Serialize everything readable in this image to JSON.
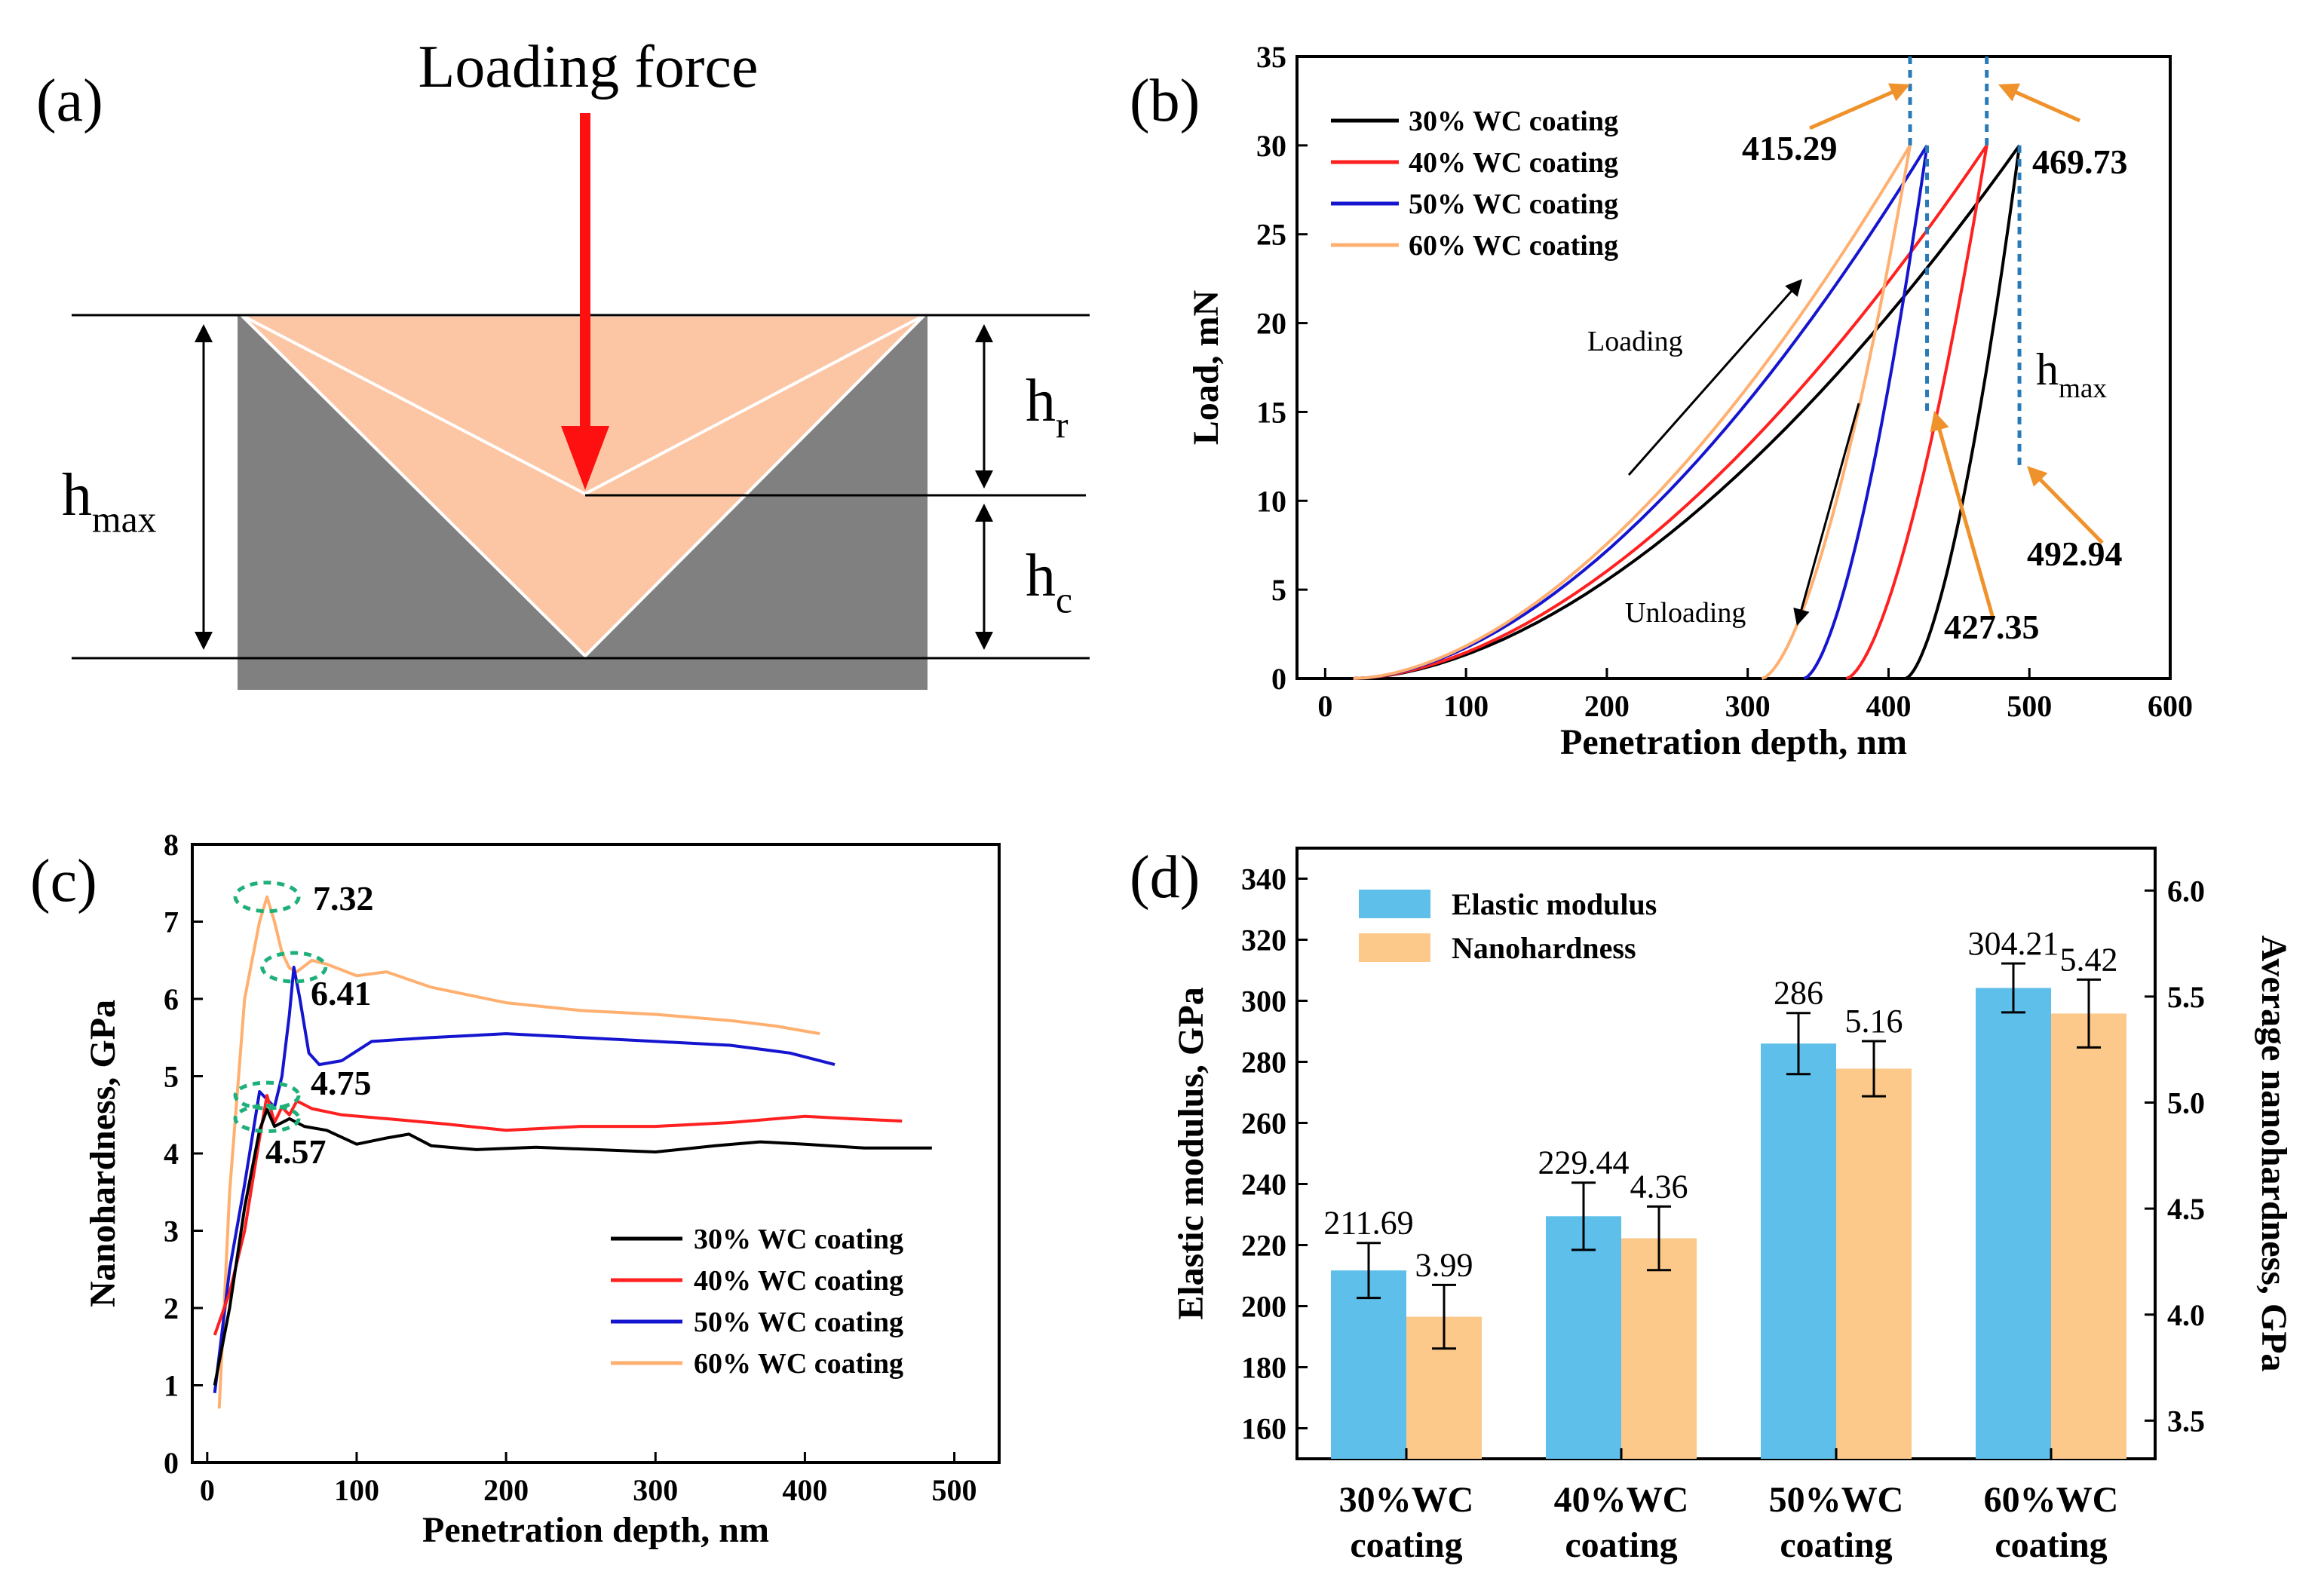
{
  "panels": {
    "a": {
      "label": "(a)",
      "force_label": "Loading force",
      "hmax": {
        "main": "h",
        "sub": "max"
      },
      "hr": {
        "main": "h",
        "sub": "r"
      },
      "hc": {
        "main": "h",
        "sub": "c"
      },
      "colors": {
        "substrate": "#808080",
        "indenter": "#fcc6a4",
        "arrow": "#ff1010"
      }
    },
    "b": {
      "label": "(b)",
      "hmax": {
        "main": "h",
        "sub": "max"
      },
      "loading_label": "Loading",
      "unloading_label": "Unloading",
      "callouts": [
        "415.29",
        "469.73",
        "427.35",
        "492.94"
      ]
    },
    "c": {
      "label": "(c)",
      "peaks": [
        "7.32",
        "6.41",
        "4.75",
        "4.57"
      ]
    },
    "d": {
      "label": "(d)",
      "legend": [
        "Elastic modulus",
        "Nanohardness"
      ],
      "category_lines": [
        [
          "30%WC",
          "coating"
        ],
        [
          "40%WC",
          "coating"
        ],
        [
          "50%WC",
          "coating"
        ],
        [
          "60%WC",
          "coating"
        ]
      ]
    }
  },
  "series_colors": [
    "#000000",
    "#ff2020",
    "#1515d0",
    "#ffb070"
  ],
  "bar_colors": [
    "#5ec0ea",
    "#fcc98a"
  ],
  "callout_color": "#f0922b",
  "chart_data": [
    {
      "panel": "b",
      "type": "line",
      "title": "",
      "xlabel": "Penetration depth, nm",
      "ylabel": "Load, mN",
      "xlim": [
        -20,
        600
      ],
      "ylim": [
        0,
        35
      ],
      "xticks": [
        0,
        100,
        200,
        300,
        400,
        500,
        600
      ],
      "yticks": [
        0,
        5,
        10,
        15,
        20,
        25,
        30,
        35
      ],
      "legend_position": "top-left",
      "series": [
        {
          "name": "30% WC coating",
          "hmax": 492.94,
          "hr": 412,
          "hpeak": 30
        },
        {
          "name": "40% WC coating",
          "hmax": 469.73,
          "hr": 370,
          "hpeak": 30
        },
        {
          "name": "50% WC coating",
          "hmax": 427.35,
          "hr": 340,
          "hpeak": 30
        },
        {
          "name": "60% WC coating",
          "hmax": 415.29,
          "hr": 310,
          "hpeak": 30
        }
      ],
      "annotations": [
        {
          "text": "415.29",
          "x": 415.29
        },
        {
          "text": "469.73",
          "x": 469.73
        },
        {
          "text": "427.35",
          "x": 427.35
        },
        {
          "text": "492.94",
          "x": 492.94
        }
      ]
    },
    {
      "panel": "c",
      "type": "line",
      "title": "",
      "xlabel": "Penetration depth, nm",
      "ylabel": "Nanohardness, GPa",
      "xlim": [
        -10,
        530
      ],
      "ylim": [
        0,
        8
      ],
      "xticks": [
        0,
        100,
        200,
        300,
        400,
        500
      ],
      "yticks": [
        0,
        1,
        2,
        3,
        4,
        5,
        6,
        7,
        8
      ],
      "legend_position": "bottom-right",
      "series": [
        {
          "name": "30% WC coating",
          "x": [
            5,
            15,
            25,
            35,
            40,
            45,
            55,
            65,
            80,
            100,
            120,
            135,
            150,
            180,
            220,
            260,
            300,
            340,
            370,
            400,
            440,
            485
          ],
          "y": [
            1.0,
            2.0,
            3.3,
            4.3,
            4.57,
            4.35,
            4.45,
            4.35,
            4.3,
            4.12,
            4.2,
            4.25,
            4.1,
            4.05,
            4.08,
            4.05,
            4.02,
            4.1,
            4.15,
            4.12,
            4.07,
            4.07
          ]
        },
        {
          "name": "40% WC coating",
          "x": [
            5,
            15,
            25,
            35,
            40,
            45,
            50,
            55,
            60,
            70,
            90,
            120,
            160,
            200,
            250,
            300,
            350,
            400,
            430,
            465
          ],
          "y": [
            1.65,
            2.2,
            3.0,
            4.2,
            4.75,
            4.4,
            4.6,
            4.5,
            4.68,
            4.58,
            4.5,
            4.45,
            4.38,
            4.3,
            4.35,
            4.35,
            4.4,
            4.48,
            4.45,
            4.42
          ]
        },
        {
          "name": "50% WC coating",
          "x": [
            5,
            15,
            25,
            35,
            45,
            50,
            55,
            58,
            62,
            68,
            75,
            90,
            110,
            150,
            200,
            250,
            300,
            350,
            390,
            420
          ],
          "y": [
            0.9,
            2.5,
            3.6,
            4.8,
            4.6,
            5.0,
            5.8,
            6.41,
            6.0,
            5.3,
            5.15,
            5.2,
            5.45,
            5.5,
            5.55,
            5.5,
            5.45,
            5.4,
            5.3,
            5.15
          ]
        },
        {
          "name": "60% WC coating",
          "x": [
            8,
            15,
            25,
            35,
            40,
            45,
            50,
            55,
            60,
            70,
            80,
            100,
            120,
            150,
            200,
            250,
            300,
            350,
            380,
            410
          ],
          "y": [
            0.7,
            3.5,
            6.0,
            7.0,
            7.32,
            7.0,
            6.6,
            6.4,
            6.35,
            6.5,
            6.45,
            6.3,
            6.35,
            6.15,
            5.95,
            5.85,
            5.8,
            5.72,
            5.65,
            5.55
          ]
        }
      ],
      "annotations": [
        {
          "text": "7.32",
          "x": 40,
          "y": 7.32
        },
        {
          "text": "6.41",
          "x": 58,
          "y": 6.41
        },
        {
          "text": "4.75",
          "x": 40,
          "y": 4.75
        },
        {
          "text": "4.57",
          "x": 40,
          "y": 4.57
        }
      ]
    },
    {
      "panel": "d",
      "type": "bar",
      "title": "",
      "categories": [
        "30%WC coating",
        "40%WC coating",
        "50%WC coating",
        "60%WC coating"
      ],
      "xlabel": "",
      "ylabel": "Elastic modulus, GPa",
      "ylabel_right": "Average nanohardness, GPa",
      "ylim": [
        150,
        350
      ],
      "ylim_right": [
        3.32,
        6.2
      ],
      "yticks": [
        160,
        180,
        200,
        220,
        240,
        260,
        280,
        300,
        320,
        340
      ],
      "yticks_right": [
        3.5,
        4.0,
        4.5,
        5.0,
        5.5,
        6.0
      ],
      "legend_position": "top-left",
      "series": [
        {
          "name": "Elastic modulus",
          "axis": "left",
          "values": [
            211.69,
            229.44,
            286,
            304.21
          ],
          "errors": [
            9,
            11,
            10,
            8
          ],
          "labels": [
            "211.69",
            "229.44",
            "286",
            "304.21"
          ]
        },
        {
          "name": "Nanohardness",
          "axis": "right",
          "values": [
            3.99,
            4.36,
            5.16,
            5.42
          ],
          "errors": [
            0.15,
            0.15,
            0.13,
            0.16
          ],
          "labels": [
            "3.99",
            "4.36",
            "5.16",
            "5.42"
          ]
        }
      ]
    }
  ]
}
